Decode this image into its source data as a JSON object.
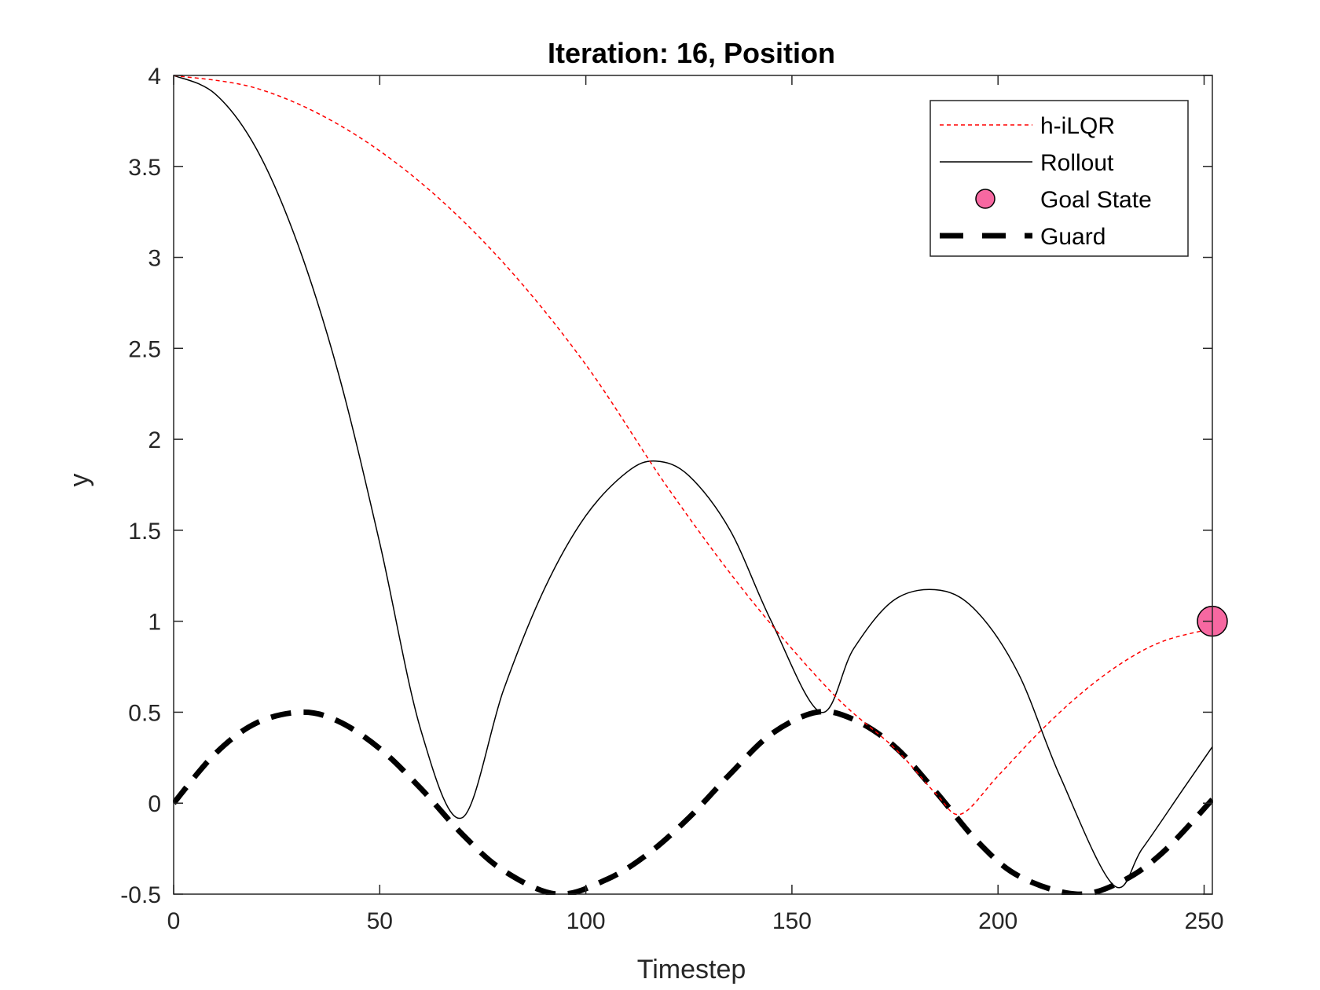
{
  "chart_data": {
    "type": "line",
    "title": "Iteration: 16, Position",
    "xlabel": "Timestep",
    "ylabel": "y",
    "xlim": [
      0,
      252
    ],
    "ylim": [
      -0.5,
      4
    ],
    "xticks": [
      0,
      50,
      100,
      150,
      200,
      250
    ],
    "xtick_labels": [
      "0",
      "50",
      "100",
      "150",
      "200",
      "250"
    ],
    "yticks": [
      -0.5,
      0,
      0.5,
      1,
      1.5,
      2,
      2.5,
      3,
      3.5,
      4
    ],
    "ytick_labels": [
      "-0.5",
      "0",
      "0.5",
      "1",
      "1.5",
      "2",
      "2.5",
      "3",
      "3.5",
      "4"
    ],
    "grid": false,
    "legend_position": "top-right",
    "series": [
      {
        "name": "h-iLQR",
        "style": "dotted",
        "color": "#ff0000",
        "x": [
          0,
          20,
          40,
          60,
          80,
          100,
          120,
          140,
          160,
          175,
          185,
          191,
          200,
          210,
          220,
          230,
          240,
          252
        ],
        "y": [
          4.0,
          3.93,
          3.73,
          3.41,
          2.97,
          2.41,
          1.73,
          1.12,
          0.6,
          0.3,
          0.05,
          -0.06,
          0.15,
          0.39,
          0.6,
          0.77,
          0.89,
          0.96
        ]
      },
      {
        "name": "Rollout",
        "style": "solid",
        "color": "#000000",
        "x": [
          0,
          10,
          20,
          30,
          40,
          50,
          60,
          70,
          80,
          90,
          100,
          110,
          117,
          125,
          135,
          145,
          157,
          165,
          175,
          186,
          195,
          205,
          215,
          228,
          235,
          245,
          252
        ],
        "y": [
          4.0,
          3.9,
          3.6,
          3.08,
          2.36,
          1.43,
          0.4,
          -0.08,
          0.62,
          1.18,
          1.58,
          1.82,
          1.88,
          1.8,
          1.5,
          1.0,
          0.5,
          0.85,
          1.12,
          1.17,
          1.05,
          0.71,
          0.15,
          -0.45,
          -0.25,
          0.08,
          0.31
        ]
      },
      {
        "name": "Guard",
        "style": "dashed",
        "color": "#000000",
        "x": [
          0,
          10,
          20,
          31,
          40,
          50,
          60,
          70,
          80,
          93,
          105,
          115,
          125,
          135,
          145,
          156,
          165,
          175,
          185,
          195,
          205,
          219,
          230,
          240,
          252
        ],
        "y": [
          0.0,
          0.27,
          0.44,
          0.5,
          0.45,
          0.3,
          0.08,
          -0.17,
          -0.37,
          -0.5,
          -0.42,
          -0.28,
          -0.08,
          0.16,
          0.38,
          0.5,
          0.46,
          0.31,
          0.06,
          -0.21,
          -0.4,
          -0.5,
          -0.43,
          -0.27,
          0.02
        ]
      }
    ],
    "markers": [
      {
        "name": "Goal State",
        "x": 252,
        "y": 1,
        "color": "#f768a1"
      }
    ]
  }
}
